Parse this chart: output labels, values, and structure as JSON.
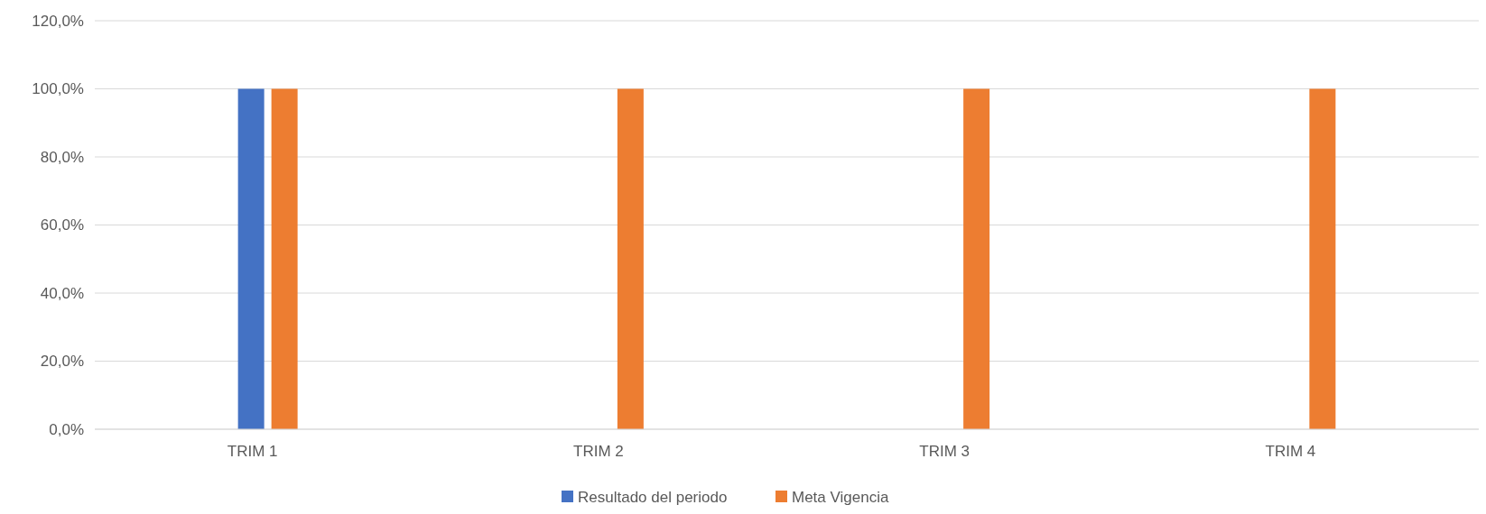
{
  "chart_data": {
    "type": "bar",
    "categories": [
      "TRIM 1",
      "TRIM 2",
      "TRIM 3",
      "TRIM 4"
    ],
    "series": [
      {
        "name": "Resultado del periodo",
        "color": "#4472c4",
        "values": [
          100,
          null,
          null,
          null
        ]
      },
      {
        "name": "Meta Vigencia",
        "color": "#ed7d31",
        "values": [
          100,
          100,
          100,
          100
        ]
      }
    ],
    "ylim": [
      0,
      120
    ],
    "yticks": [
      {
        "value": 0,
        "label": "0,0%"
      },
      {
        "value": 20,
        "label": "20,0%"
      },
      {
        "value": 40,
        "label": "40,0%"
      },
      {
        "value": 60,
        "label": "60,0%"
      },
      {
        "value": 80,
        "label": "80,0%"
      },
      {
        "value": 100,
        "label": "100,0%"
      },
      {
        "value": 120,
        "label": "120,0%"
      }
    ],
    "grid": "y",
    "legend": "bottom"
  }
}
